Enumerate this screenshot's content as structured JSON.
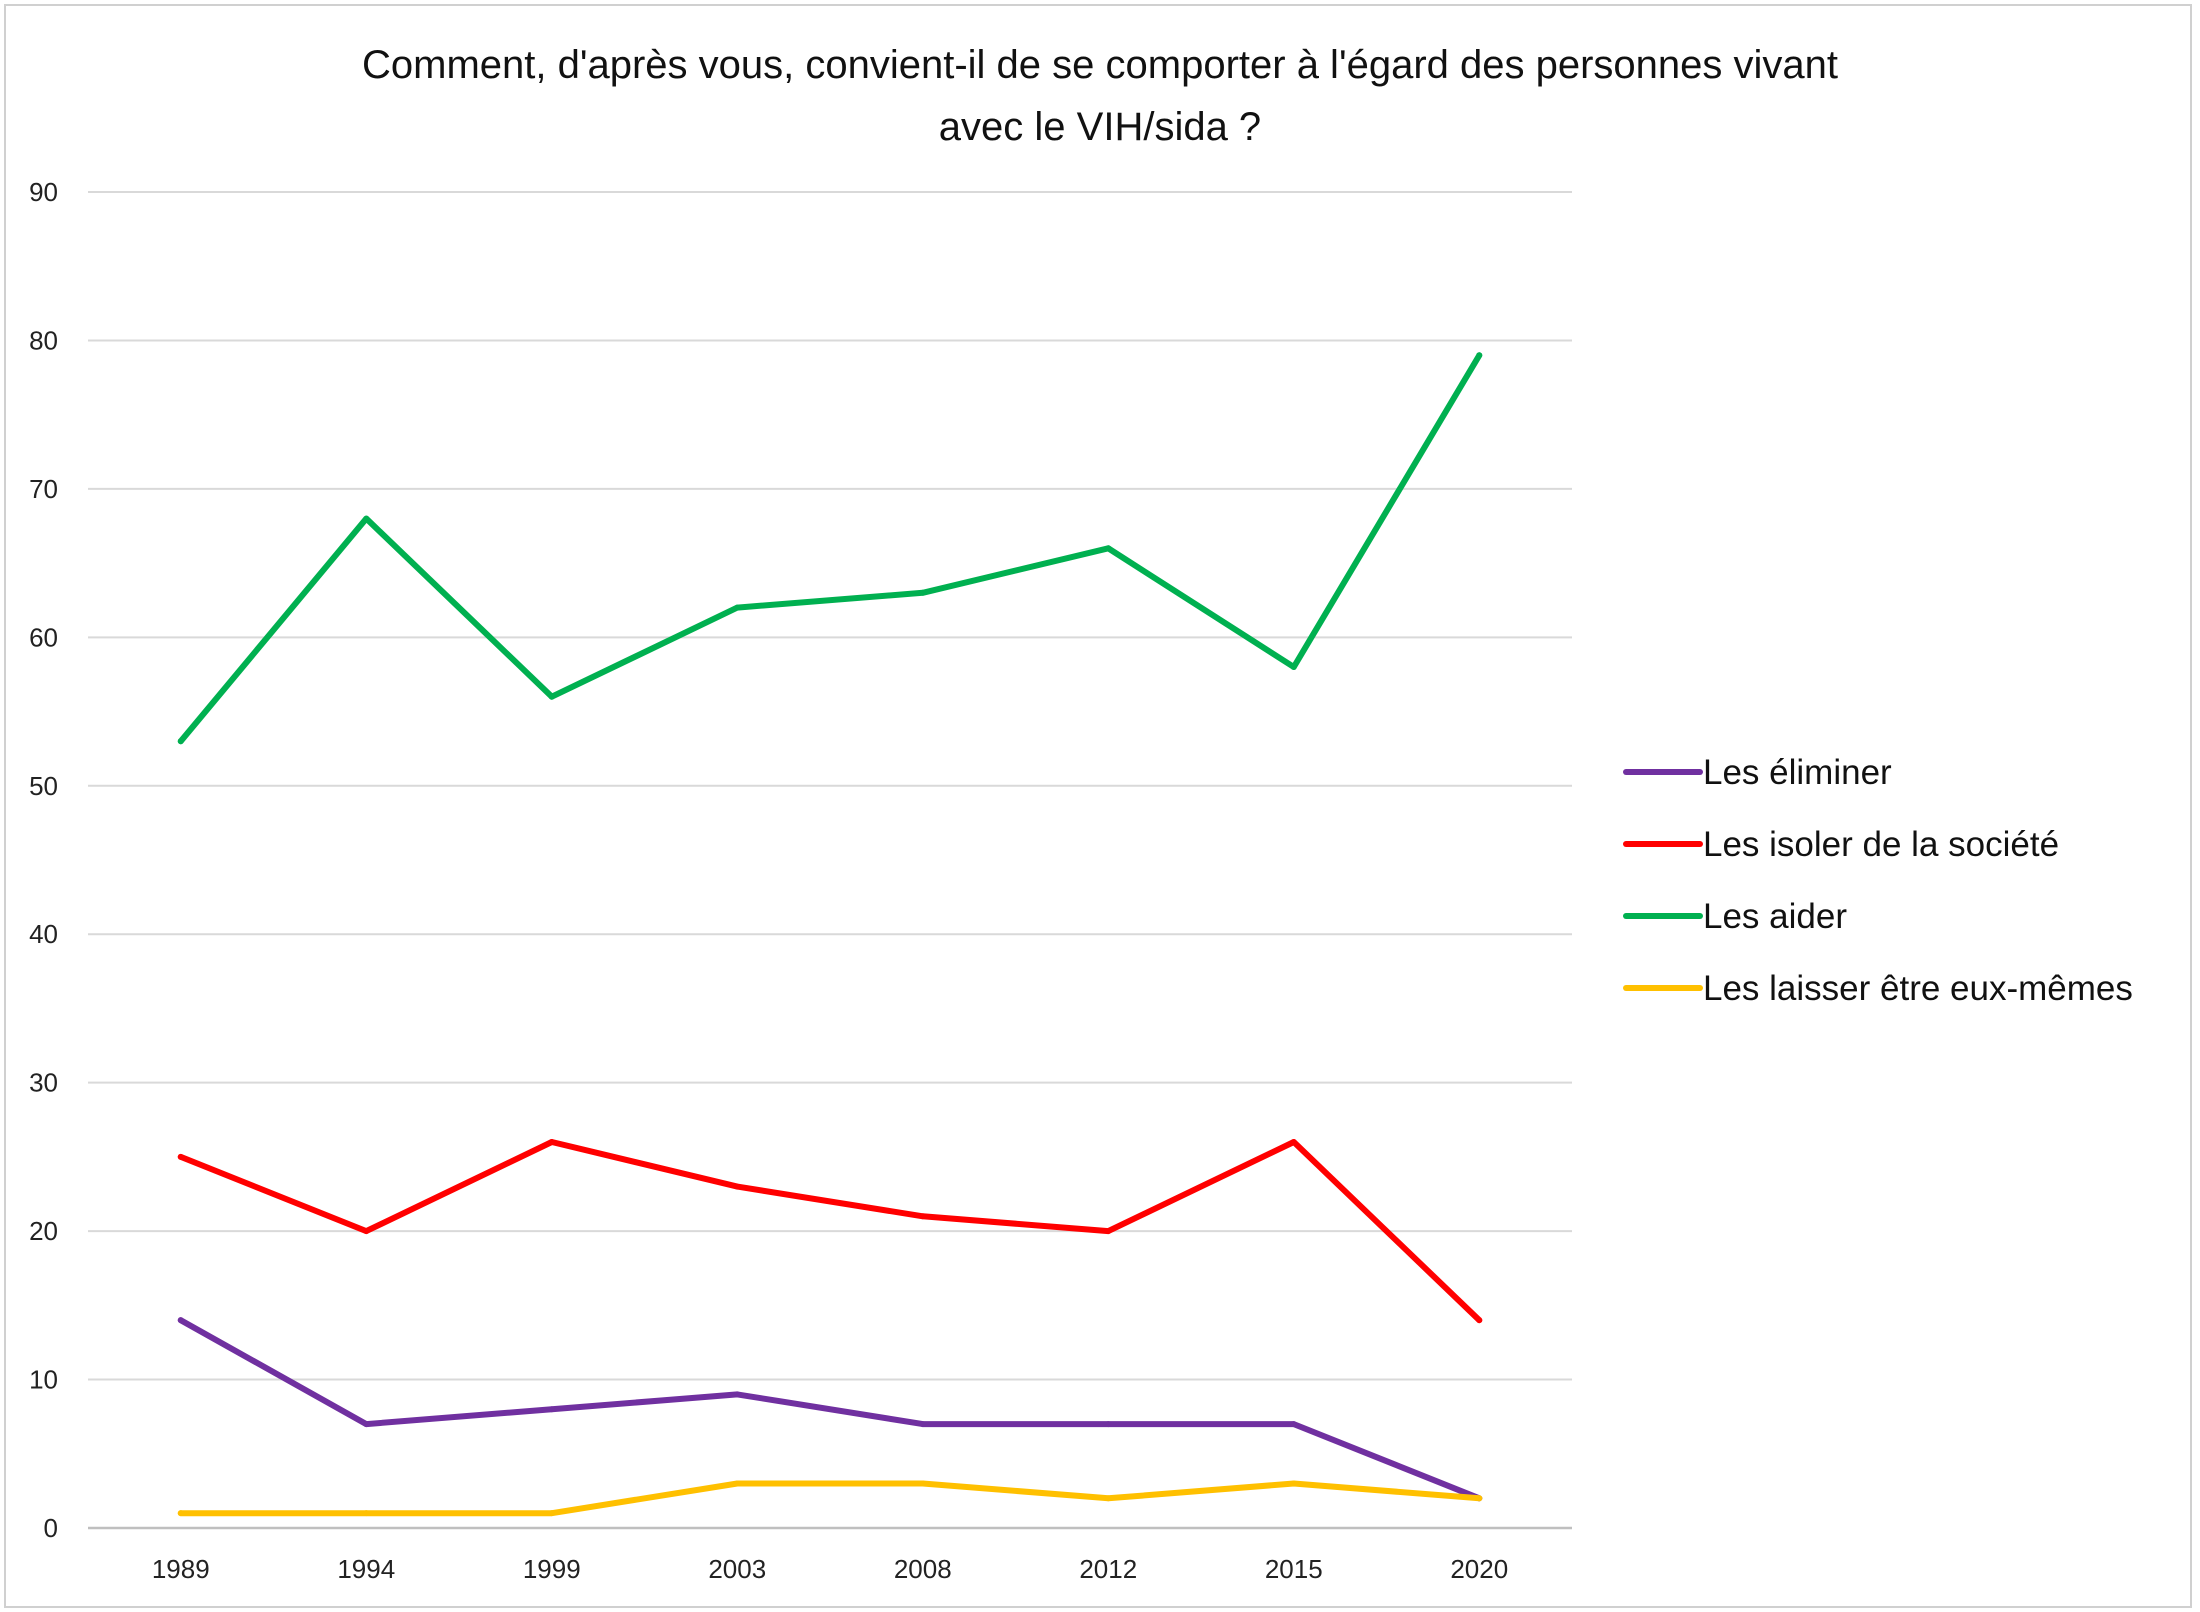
{
  "chart_data": {
    "type": "line",
    "title_lines": [
      "Comment, d'après vous, convient-il de se comporter à l'égard des personnes vivant",
      "avec le VIH/sida ?"
    ],
    "xlabel": "",
    "ylabel": "",
    "categories": [
      "1989",
      "1994",
      "1999",
      "2003",
      "2008",
      "2012",
      "2015",
      "2020"
    ],
    "ylim": [
      0,
      90
    ],
    "yticks": [
      0,
      10,
      20,
      30,
      40,
      50,
      60,
      70,
      80,
      90
    ],
    "grid": true,
    "legend_position": "right",
    "series": [
      {
        "name": "Les éliminer",
        "color": "#7030a0",
        "values": [
          14,
          7,
          8,
          9,
          7,
          7,
          7,
          2
        ]
      },
      {
        "name": "Les isoler de la société",
        "color": "#ff0000",
        "values": [
          25,
          20,
          26,
          23,
          21,
          20,
          26,
          14
        ]
      },
      {
        "name": "Les aider",
        "color": "#00b050",
        "values": [
          53,
          68,
          56,
          62,
          63,
          66,
          58,
          79
        ]
      },
      {
        "name": "Les laisser être eux-mêmes",
        "color": "#ffc000",
        "values": [
          1,
          1,
          1,
          3,
          3,
          2,
          3,
          2
        ]
      }
    ]
  }
}
